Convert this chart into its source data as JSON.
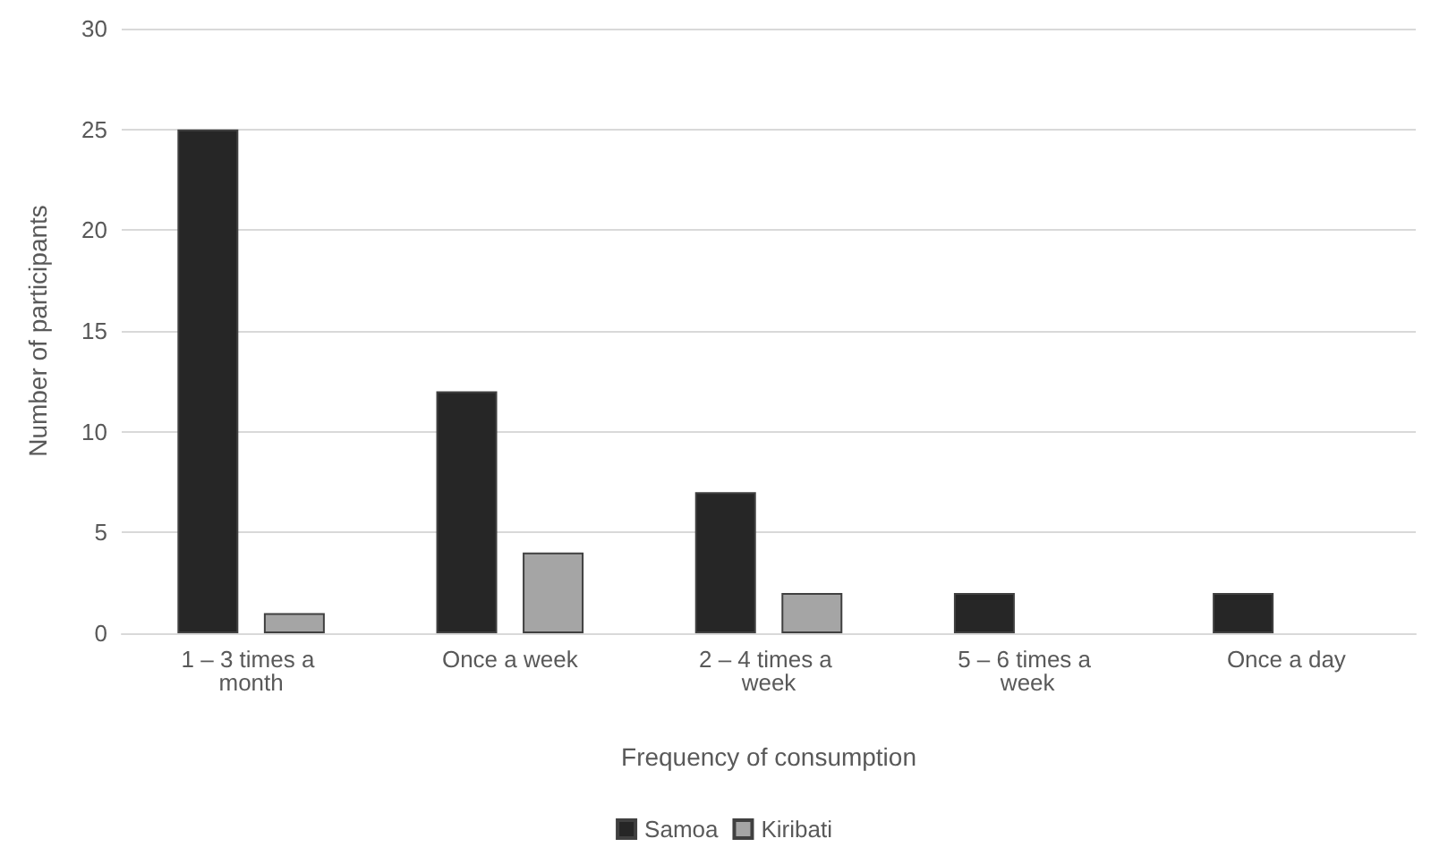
{
  "chart_data": {
    "type": "bar",
    "xlabel": "Frequency of consumption",
    "ylabel": "Number of participants",
    "categories": [
      "1 – 3 times a month",
      "Once a week",
      "2 – 4 times a week",
      "5 – 6 times a week",
      "Once a day"
    ],
    "series": [
      {
        "name": "Samoa",
        "color": "#262626",
        "values": [
          25,
          12,
          7,
          2,
          2
        ]
      },
      {
        "name": "Kiribati",
        "color": "#a5a5a5",
        "values": [
          1,
          4,
          2,
          0,
          0
        ]
      }
    ],
    "ylim": [
      0,
      30
    ],
    "yticks": [
      0,
      5,
      10,
      15,
      20,
      25,
      30
    ],
    "grid": "y",
    "legend": "bottom"
  }
}
